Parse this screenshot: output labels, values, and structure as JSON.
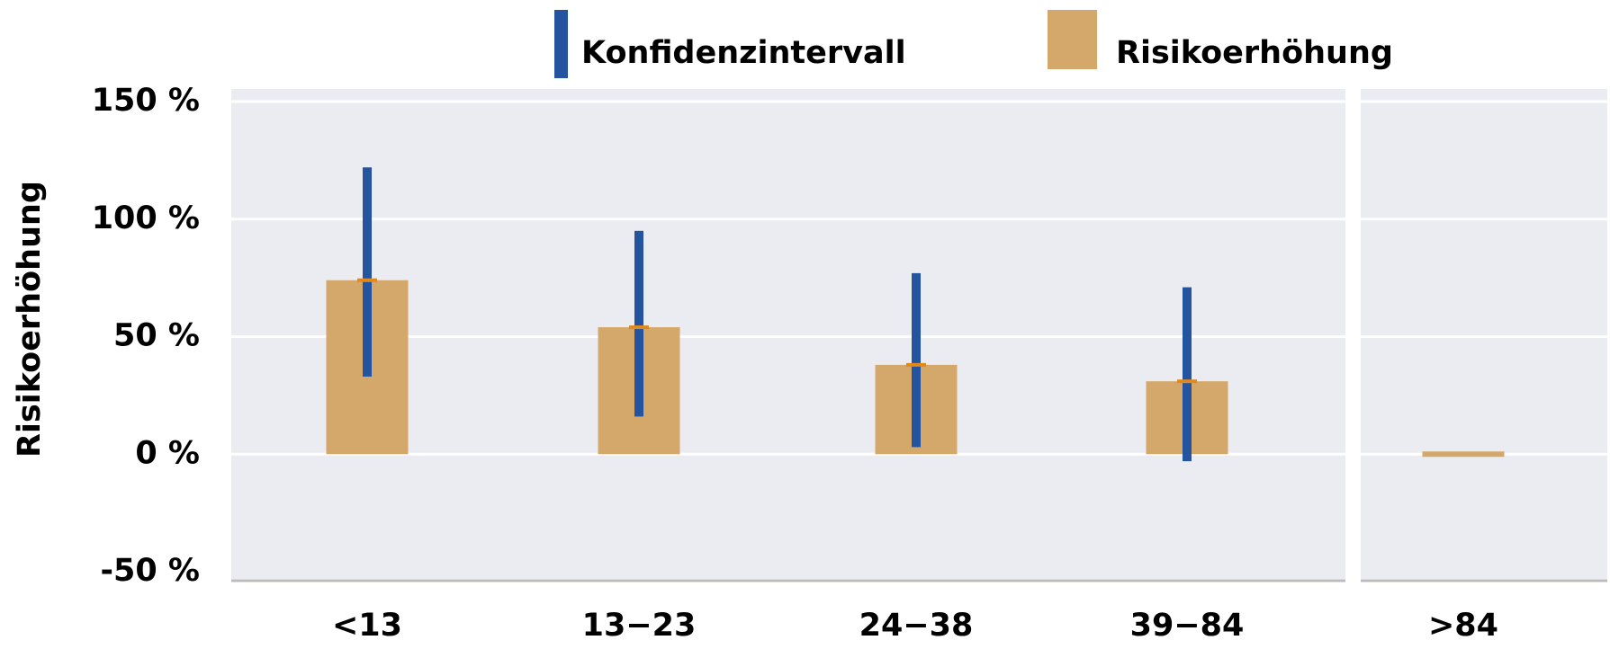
{
  "chart_data": {
    "type": "bar",
    "y_label": "Risikoerhöhung",
    "categories": [
      "<13",
      "13−23",
      "24−38",
      "39−84",
      ">84"
    ],
    "series": [
      {
        "name": "Risikoerhöhung",
        "color": "#d4a76a",
        "values": [
          74,
          54,
          38,
          31,
          0
        ]
      }
    ],
    "intervals": {
      "name": "Konfidenzintervall",
      "color": "#2453a0",
      "low": [
        33,
        16,
        3,
        -3,
        null
      ],
      "high": [
        122,
        95,
        77,
        71,
        null
      ]
    },
    "ylim": [
      -50,
      150
    ],
    "yticks": [
      {
        "value": -50,
        "label": "-50 %"
      },
      {
        "value": 0,
        "label": "0 %"
      },
      {
        "value": 50,
        "label": "50 %"
      },
      {
        "value": 100,
        "label": "100 %"
      },
      {
        "value": 150,
        "label": "150 %"
      }
    ],
    "grid": true
  }
}
